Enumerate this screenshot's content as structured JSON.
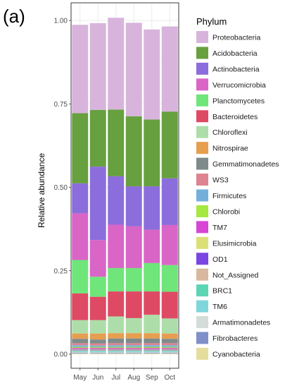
{
  "panel_label": "(a)",
  "chart_data": {
    "type": "bar",
    "stacked": true,
    "title": "",
    "xlabel": "",
    "ylabel": "Relative abundance",
    "ylim": [
      0,
      1
    ],
    "yticks": [
      "0.00",
      "0.25",
      "0.50",
      "0.75",
      "1.00"
    ],
    "categories": [
      "May",
      "Jun",
      "Jul",
      "Aug",
      "Sep",
      "Oct"
    ],
    "grid": true,
    "legend": {
      "title": "Phylum",
      "position": "right"
    },
    "series": [
      {
        "name": "Cyanobacteria",
        "color": "#e5dd9c",
        "values": [
          0.002,
          0.002,
          0.002,
          0.002,
          0.002,
          0.002
        ]
      },
      {
        "name": "Fibrobacteres",
        "color": "#7f90c9",
        "values": [
          0.002,
          0.002,
          0.002,
          0.002,
          0.002,
          0.002
        ]
      },
      {
        "name": "Armatimonadetes",
        "color": "#d3dcd8",
        "values": [
          0.002,
          0.002,
          0.002,
          0.002,
          0.002,
          0.002
        ]
      },
      {
        "name": "TM6",
        "color": "#7fd6da",
        "values": [
          0.002,
          0.002,
          0.002,
          0.002,
          0.002,
          0.002
        ]
      },
      {
        "name": "BRC1",
        "color": "#5cd5b5",
        "values": [
          0.002,
          0.002,
          0.002,
          0.002,
          0.002,
          0.002
        ]
      },
      {
        "name": "Not_Assigned",
        "color": "#d8b99f",
        "values": [
          0.002,
          0.002,
          0.002,
          0.002,
          0.002,
          0.002
        ]
      },
      {
        "name": "OD1",
        "color": "#7a46e3",
        "values": [
          0.002,
          0.002,
          0.002,
          0.002,
          0.002,
          0.002
        ]
      },
      {
        "name": "Elusimicrobia",
        "color": "#dbe076",
        "values": [
          0.002,
          0.002,
          0.002,
          0.002,
          0.002,
          0.002
        ]
      },
      {
        "name": "TM7",
        "color": "#d746d5",
        "values": [
          0.003,
          0.003,
          0.003,
          0.003,
          0.003,
          0.003
        ]
      },
      {
        "name": "Chlorobi",
        "color": "#a4e840",
        "values": [
          0.003,
          0.003,
          0.003,
          0.003,
          0.003,
          0.003
        ]
      },
      {
        "name": "Firmicutes",
        "color": "#74afdc",
        "values": [
          0.005,
          0.004,
          0.005,
          0.005,
          0.005,
          0.005
        ]
      },
      {
        "name": "WS3",
        "color": "#dd8490",
        "values": [
          0.006,
          0.006,
          0.006,
          0.006,
          0.006,
          0.006
        ]
      },
      {
        "name": "Gemmatimonadetes",
        "color": "#7f8b8b",
        "values": [
          0.013,
          0.012,
          0.014,
          0.014,
          0.014,
          0.013
        ]
      },
      {
        "name": "Nitrospirae",
        "color": "#e69e50",
        "values": [
          0.016,
          0.018,
          0.016,
          0.016,
          0.016,
          0.016
        ]
      },
      {
        "name": "Chloroflexi",
        "color": "#addea9",
        "values": [
          0.04,
          0.04,
          0.05,
          0.045,
          0.055,
          0.045
        ]
      },
      {
        "name": "Bacteroidetes",
        "color": "#de4a64",
        "values": [
          0.08,
          0.07,
          0.075,
          0.08,
          0.07,
          0.08
        ]
      },
      {
        "name": "Planctomycetes",
        "color": "#6fe57a",
        "values": [
          0.1,
          0.06,
          0.07,
          0.07,
          0.085,
          0.08
        ]
      },
      {
        "name": "Verrucomicrobia",
        "color": "#d965c7",
        "values": [
          0.14,
          0.11,
          0.13,
          0.125,
          0.1,
          0.12
        ]
      },
      {
        "name": "Actinobacteria",
        "color": "#8c6ddc",
        "values": [
          0.09,
          0.22,
          0.145,
          0.12,
          0.13,
          0.14
        ]
      },
      {
        "name": "Acidobacteria",
        "color": "#67a03f",
        "values": [
          0.21,
          0.17,
          0.2,
          0.21,
          0.2,
          0.2
        ]
      },
      {
        "name": "Proteobacteria",
        "color": "#d8b4dc",
        "values": [
          0.265,
          0.26,
          0.275,
          0.28,
          0.27,
          0.255
        ]
      }
    ]
  }
}
